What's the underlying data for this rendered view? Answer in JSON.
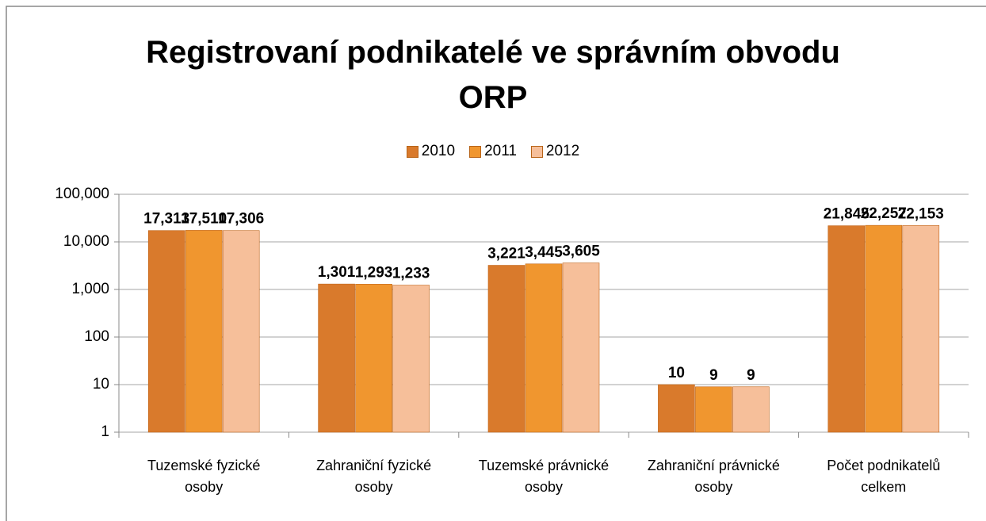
{
  "chart_data": {
    "type": "bar",
    "title": "Registrovaní podnikatelé ve správním obvodu ORP",
    "categories": [
      "Tuzemské fyzické osoby",
      "Zahraniční fyzické osoby",
      "Tuzemské právnické osoby",
      "Zahraniční právnické osoby",
      "Počet podnikatelů celkem"
    ],
    "series": [
      {
        "name": "2010",
        "color": "#d97a2c",
        "values": [
          17313,
          1301,
          3221,
          10,
          21845
        ],
        "value_labels": [
          "17,313",
          "1,301",
          "3,221",
          "10",
          "21,845"
        ]
      },
      {
        "name": "2011",
        "color": "#f0962f",
        "values": [
          17510,
          1293,
          3445,
          9,
          22257
        ],
        "value_labels": [
          "17,510",
          "1,293",
          "3,445",
          "9",
          "22,257"
        ]
      },
      {
        "name": "2012",
        "color": "#f6bf9a",
        "values": [
          17306,
          1233,
          3605,
          9,
          22153
        ],
        "value_labels": [
          "17,306",
          "1,233",
          "3,605",
          "9",
          "22,153"
        ]
      }
    ],
    "ylim": [
      1,
      100000
    ],
    "log_scale": true,
    "yticks": [
      1,
      10,
      100,
      {
        "value": 1000,
        "label": "1,000"
      },
      {
        "value": 10000,
        "label": "10,000"
      },
      {
        "value": 100000,
        "label": "100,000"
      }
    ],
    "grid": true,
    "legend": "top"
  }
}
